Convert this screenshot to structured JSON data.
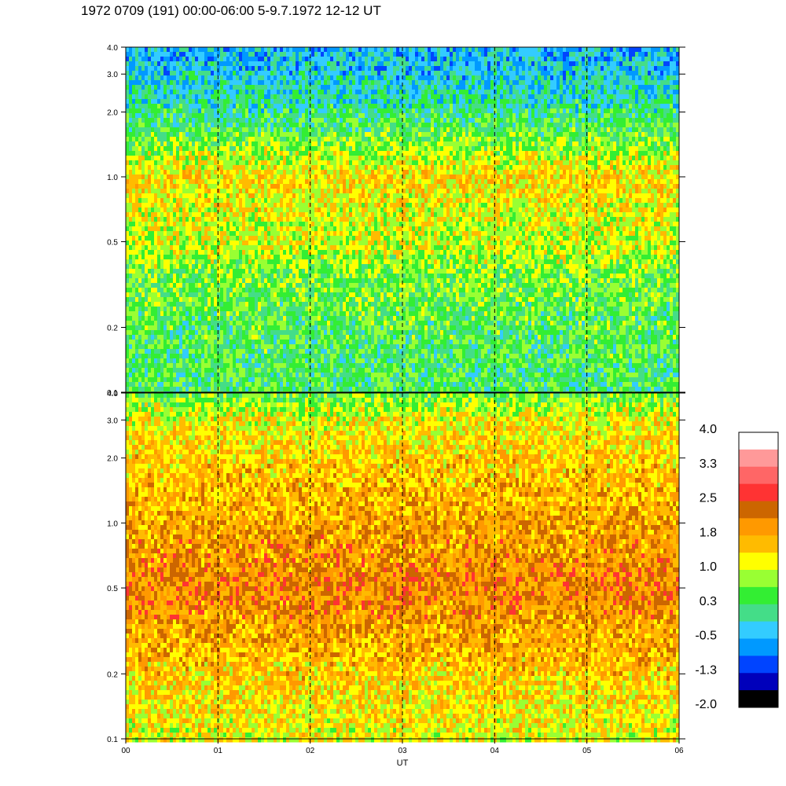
{
  "title": "1972 0709 (191) 00:00-06:00 5-9.7.1972  12-12 UT",
  "chart_data": [
    {
      "type": "heatmap",
      "panel": "upper",
      "x_range": [
        "00",
        "06"
      ],
      "y_scale": "log",
      "y_range": [
        0.1,
        4.0
      ],
      "y_ticks": [
        "0.1",
        "0.2",
        "0.5",
        "1.0",
        "2.0",
        "3.0",
        "4.0"
      ],
      "y_tick_values": [
        0.1,
        0.2,
        0.5,
        1.0,
        2.0,
        3.0,
        4.0
      ],
      "vertical_dashed_lines_at": [
        1,
        2,
        3,
        4,
        5
      ],
      "band_profile": [
        {
          "y": 0.1,
          "level": 0.3
        },
        {
          "y": 0.2,
          "level": 0.4
        },
        {
          "y": 0.35,
          "level": 0.6
        },
        {
          "y": 0.5,
          "level": 1.0
        },
        {
          "y": 0.8,
          "level": 1.2
        },
        {
          "y": 1.0,
          "level": 1.4
        },
        {
          "y": 1.5,
          "level": 0.6
        },
        {
          "y": 2.0,
          "level": 0.1
        },
        {
          "y": 3.0,
          "level": -0.3
        },
        {
          "y": 4.0,
          "level": -0.5
        }
      ]
    },
    {
      "type": "heatmap",
      "panel": "lower",
      "x_range": [
        "00",
        "06"
      ],
      "y_scale": "log",
      "y_range": [
        0.1,
        4.0
      ],
      "y_ticks": [
        "0.1",
        "0.2",
        "0.5",
        "1.0",
        "2.0",
        "3.0",
        "4.0"
      ],
      "y_tick_values": [
        0.1,
        0.2,
        0.5,
        1.0,
        2.0,
        3.0,
        4.0
      ],
      "x_ticks": [
        "00",
        "01",
        "02",
        "03",
        "04",
        "05",
        "06"
      ],
      "xlabel": "UT",
      "vertical_dashed_lines_at": [
        1,
        2,
        3,
        4,
        5
      ],
      "band_profile": [
        {
          "y": 0.1,
          "level": 1.1
        },
        {
          "y": 0.2,
          "level": 1.5
        },
        {
          "y": 0.5,
          "level": 2.1
        },
        {
          "y": 1.0,
          "level": 1.8
        },
        {
          "y": 2.0,
          "level": 1.5
        },
        {
          "y": 3.0,
          "level": 1.2
        },
        {
          "y": 4.0,
          "level": 0.5
        }
      ]
    }
  ],
  "colorbar": {
    "labels": [
      "4.0",
      "3.3",
      "2.5",
      "1.8",
      "1.0",
      "0.3",
      "-0.5",
      "-1.3",
      "-2.0"
    ],
    "colors": [
      "#ffffff",
      "#ff9999",
      "#ff6666",
      "#ff3333",
      "#cc6600",
      "#ff9900",
      "#ffbb00",
      "#ffff00",
      "#99ff33",
      "#33ee33",
      "#44dd88",
      "#33ccff",
      "#0099ff",
      "#0044ff",
      "#0000bb",
      "#000000"
    ]
  }
}
